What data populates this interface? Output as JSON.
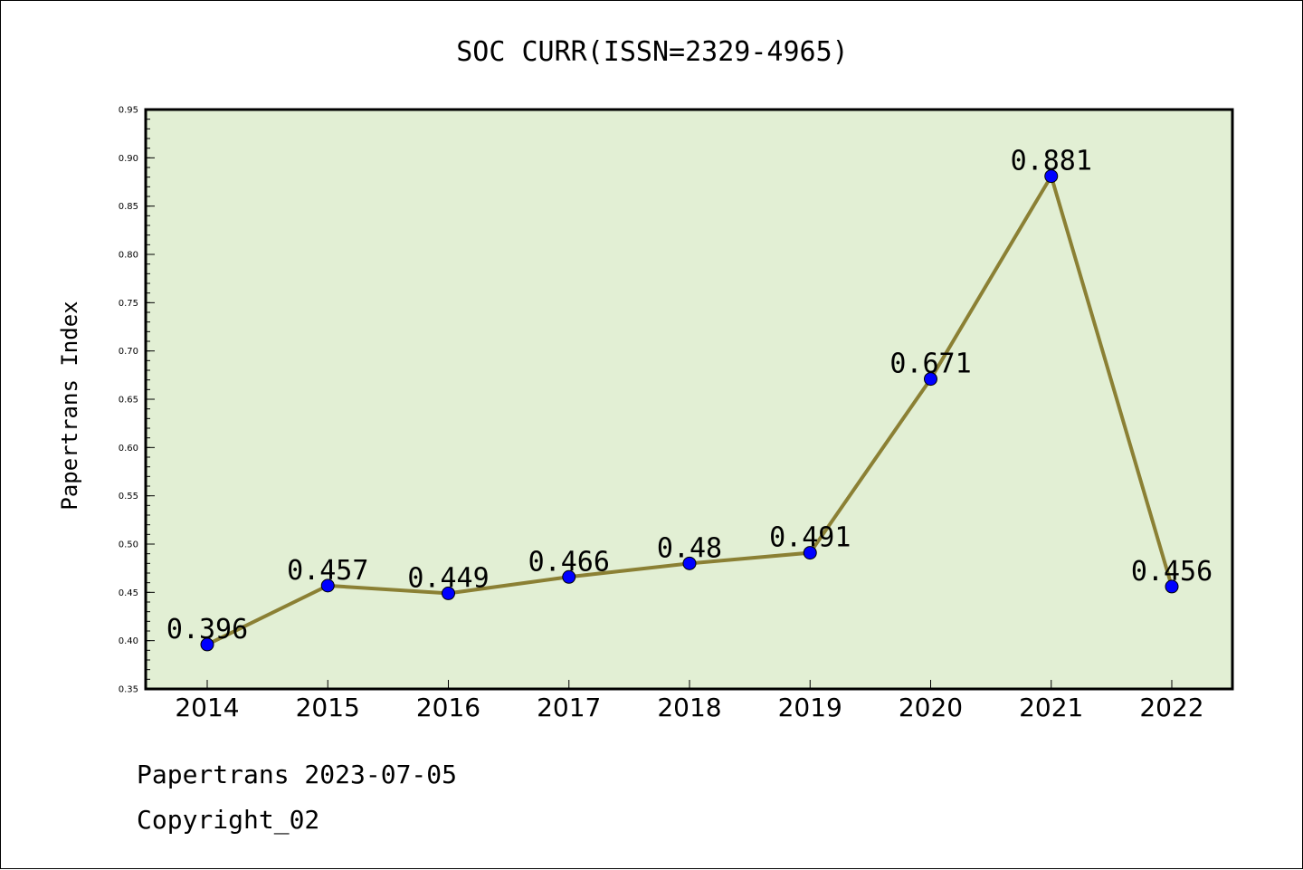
{
  "chart_data": {
    "type": "line",
    "title": "SOC CURR(ISSN=2329-4965)",
    "xlabel": "",
    "ylabel": "Papertrans Index",
    "categories": [
      "2014",
      "2015",
      "2016",
      "2017",
      "2018",
      "2019",
      "2020",
      "2021",
      "2022"
    ],
    "values": [
      0.396,
      0.457,
      0.449,
      0.466,
      0.48,
      0.491,
      0.671,
      0.881,
      0.456
    ],
    "data_labels": [
      "0.396",
      "0.457",
      "0.449",
      "0.466",
      "0.48",
      "0.491",
      "0.671",
      "0.881",
      "0.456"
    ],
    "ylim": [
      0.35,
      0.95
    ],
    "yticks": [
      "0.35",
      "0.40",
      "0.45",
      "0.50",
      "0.55",
      "0.60",
      "0.65",
      "0.70",
      "0.75",
      "0.80",
      "0.85",
      "0.90",
      "0.95"
    ],
    "grid": false,
    "legend": "none",
    "colors": {
      "plot_background": "#e2efd4",
      "line": "#8b8034",
      "marker": "#0000ff"
    }
  },
  "footer": {
    "line1": "Papertrans 2023-07-05",
    "line2": "Copyright_02"
  }
}
